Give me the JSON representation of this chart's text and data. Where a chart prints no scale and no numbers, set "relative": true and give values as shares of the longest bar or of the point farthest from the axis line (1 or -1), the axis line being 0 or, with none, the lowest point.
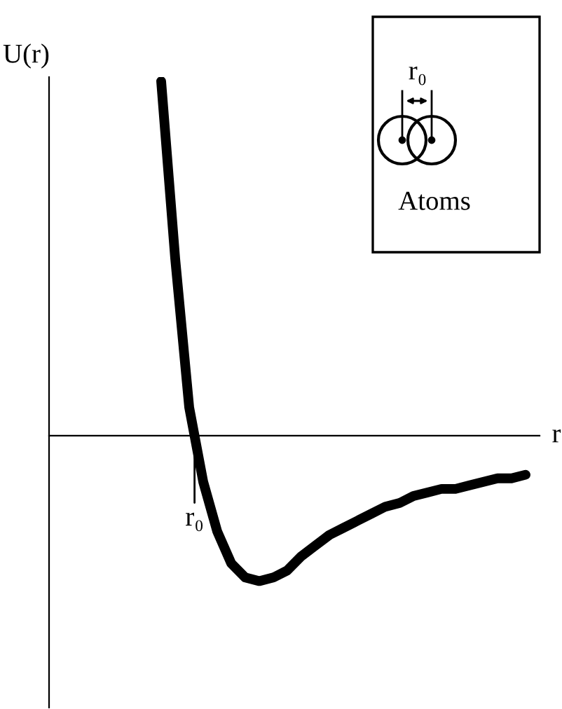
{
  "chart_data": {
    "type": "line",
    "relative": true,
    "xlabel": "r",
    "ylabel": "U(r)",
    "color": "#000000",
    "categories": [
      null,
      null,
      null,
      null,
      null,
      null,
      null,
      null,
      null,
      null,
      null,
      null,
      null,
      null,
      null,
      null,
      null,
      null,
      null,
      null,
      null,
      null,
      null,
      null,
      null,
      null,
      null,
      null,
      null,
      null,
      null,
      null,
      null,
      null,
      null
    ],
    "values": [
      null,
      null,
      null,
      null,
      null,
      null,
      null,
      null,
      1,
      0.5,
      0.08,
      -0.13,
      -0.27,
      -0.36,
      -0.4,
      -0.41,
      -0.4,
      -0.38,
      -0.34,
      -0.31,
      -0.28,
      -0.26,
      -0.24,
      -0.22,
      -0.2,
      -0.19,
      -0.17,
      -0.16,
      -0.15,
      -0.15,
      -0.14,
      -0.13,
      -0.12,
      -0.12,
      -0.11
    ],
    "annotations": [
      "r₀",
      "r₀",
      "Atoms"
    ],
    "legend": false,
    "marker": "none",
    "line_style": "solid"
  }
}
